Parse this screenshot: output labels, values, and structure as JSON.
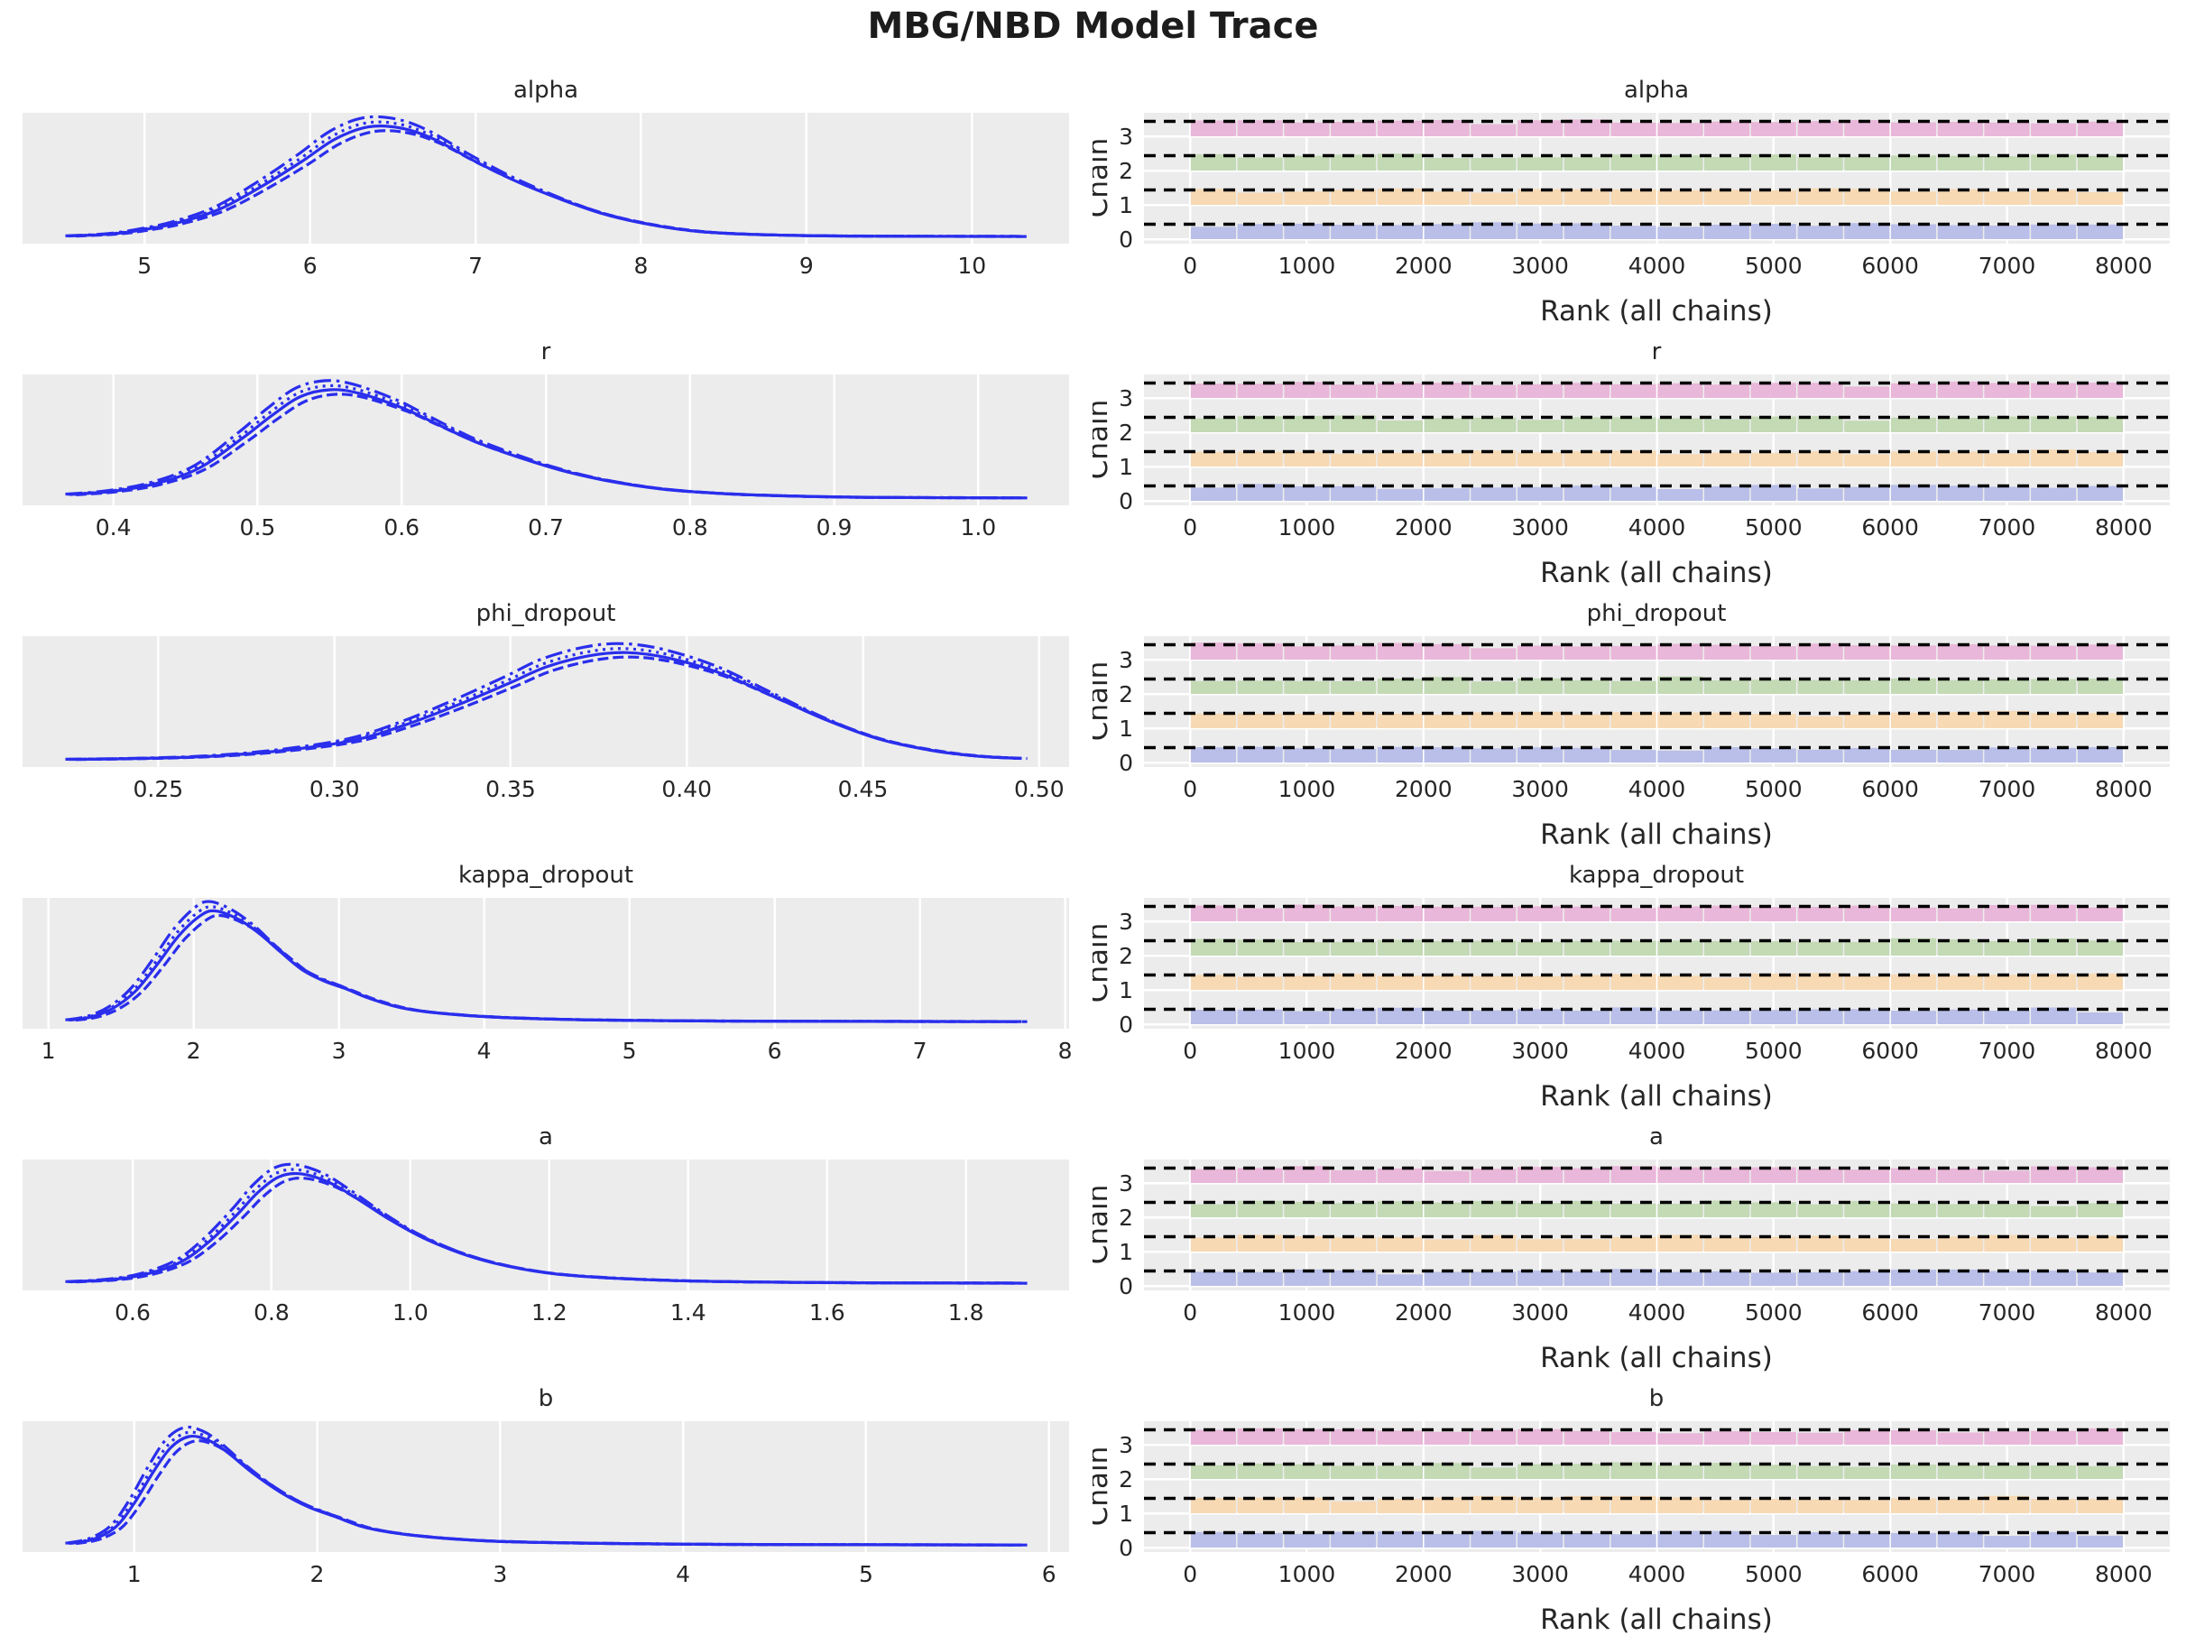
{
  "colors": {
    "figure_background": "#ffffff",
    "panel_background": "#ececec",
    "grid": "#ffffff",
    "kde_line": "#2a2eec",
    "text": "#262626",
    "expected_line": "#000000"
  },
  "chart_data": {
    "type": "line",
    "subtype": "mcmc-trace-with-rank-plots",
    "suptitle": "MBG/NBD Model Trace",
    "n_chains": 4,
    "kde_linestyles": [
      "solid",
      "dashed",
      "dotted",
      "dashdot"
    ],
    "rank_plot": {
      "xlabel": "Rank (all chains)",
      "ylabel": "Chain",
      "xlim": [
        0,
        8000
      ],
      "x_ticks": [
        0,
        1000,
        2000,
        3000,
        4000,
        5000,
        6000,
        7000,
        8000
      ],
      "x_tick_labels": [
        "0",
        "1000",
        "2000",
        "3000",
        "4000",
        "5000",
        "6000",
        "7000",
        "8000"
      ],
      "y_tick_labels": [
        "0",
        "1",
        "2",
        "3"
      ],
      "bins": 20,
      "expected_draws_per_bin": 400,
      "bars_near_uniform": true,
      "chain_colors": [
        "#b9bfe8",
        "#f7d9b4",
        "#c3dab5",
        "#e9b7d9"
      ],
      "expected_line_style": "black dashed"
    },
    "params": [
      {
        "name": "alpha",
        "x_range": [
          4.55,
          10.3
        ],
        "peak_x": 6.4,
        "x_ticks": [
          5,
          6,
          7,
          8,
          9,
          10
        ],
        "x_tick_labels": [
          "5",
          "6",
          "7",
          "8",
          "9",
          "10"
        ],
        "kde": [
          [
            4.55,
            0.012
          ],
          [
            4.8,
            0.03
          ],
          [
            5.0,
            0.07
          ],
          [
            5.2,
            0.13
          ],
          [
            5.45,
            0.25
          ],
          [
            5.7,
            0.45
          ],
          [
            5.95,
            0.68
          ],
          [
            6.15,
            0.88
          ],
          [
            6.35,
            0.99
          ],
          [
            6.55,
            0.98
          ],
          [
            6.75,
            0.88
          ],
          [
            7.0,
            0.68
          ],
          [
            7.25,
            0.5
          ],
          [
            7.5,
            0.35
          ],
          [
            7.75,
            0.22
          ],
          [
            8.0,
            0.13
          ],
          [
            8.3,
            0.06
          ],
          [
            8.6,
            0.03
          ],
          [
            9.0,
            0.015
          ],
          [
            9.5,
            0.01
          ],
          [
            10.3,
            0.008
          ]
        ]
      },
      {
        "name": "r",
        "x_range": [
          0.37,
          1.03
        ],
        "peak_x": 0.54,
        "x_ticks": [
          0.4,
          0.5,
          0.6,
          0.7,
          0.8,
          0.9,
          1.0
        ],
        "x_tick_labels": [
          "0.4",
          "0.5",
          "0.6",
          "0.7",
          "0.8",
          "0.9",
          "1.0"
        ],
        "kde": [
          [
            0.37,
            0.04
          ],
          [
            0.4,
            0.07
          ],
          [
            0.43,
            0.14
          ],
          [
            0.46,
            0.28
          ],
          [
            0.49,
            0.55
          ],
          [
            0.51,
            0.75
          ],
          [
            0.53,
            0.92
          ],
          [
            0.55,
            0.98
          ],
          [
            0.57,
            0.95
          ],
          [
            0.6,
            0.82
          ],
          [
            0.62,
            0.7
          ],
          [
            0.65,
            0.52
          ],
          [
            0.68,
            0.38
          ],
          [
            0.71,
            0.26
          ],
          [
            0.74,
            0.17
          ],
          [
            0.78,
            0.09
          ],
          [
            0.82,
            0.05
          ],
          [
            0.86,
            0.03
          ],
          [
            0.92,
            0.015
          ],
          [
            1.03,
            0.01
          ]
        ]
      },
      {
        "name": "phi_dropout",
        "x_range": [
          0.225,
          0.495
        ],
        "peak_x": 0.378,
        "x_ticks": [
          0.25,
          0.3,
          0.35,
          0.4,
          0.45,
          0.5
        ],
        "x_tick_labels": [
          "0.25",
          "0.30",
          "0.35",
          "0.40",
          "0.45",
          "0.50"
        ],
        "kde": [
          [
            0.225,
            0.012
          ],
          [
            0.245,
            0.02
          ],
          [
            0.265,
            0.04
          ],
          [
            0.285,
            0.09
          ],
          [
            0.305,
            0.18
          ],
          [
            0.32,
            0.32
          ],
          [
            0.335,
            0.5
          ],
          [
            0.35,
            0.7
          ],
          [
            0.36,
            0.84
          ],
          [
            0.372,
            0.94
          ],
          [
            0.383,
            0.97
          ],
          [
            0.395,
            0.92
          ],
          [
            0.41,
            0.78
          ],
          [
            0.425,
            0.57
          ],
          [
            0.44,
            0.36
          ],
          [
            0.455,
            0.19
          ],
          [
            0.47,
            0.09
          ],
          [
            0.483,
            0.04
          ],
          [
            0.495,
            0.02
          ]
        ]
      },
      {
        "name": "kappa_dropout",
        "x_range": [
          1.15,
          7.7
        ],
        "peak_x": 2.1,
        "x_ticks": [
          1,
          2,
          3,
          4,
          5,
          6,
          7,
          8
        ],
        "x_tick_labels": [
          "1",
          "2",
          "3",
          "4",
          "5",
          "6",
          "7",
          "8"
        ],
        "kde": [
          [
            1.15,
            0.02
          ],
          [
            1.3,
            0.05
          ],
          [
            1.45,
            0.13
          ],
          [
            1.6,
            0.28
          ],
          [
            1.75,
            0.52
          ],
          [
            1.9,
            0.78
          ],
          [
            2.05,
            0.96
          ],
          [
            2.15,
            1.0
          ],
          [
            2.3,
            0.93
          ],
          [
            2.45,
            0.8
          ],
          [
            2.6,
            0.63
          ],
          [
            2.75,
            0.47
          ],
          [
            2.9,
            0.37
          ],
          [
            3.05,
            0.3
          ],
          [
            3.2,
            0.22
          ],
          [
            3.4,
            0.14
          ],
          [
            3.6,
            0.095
          ],
          [
            3.9,
            0.06
          ],
          [
            4.2,
            0.04
          ],
          [
            4.6,
            0.025
          ],
          [
            5.0,
            0.018
          ],
          [
            5.6,
            0.012
          ],
          [
            6.3,
            0.01
          ],
          [
            7.0,
            0.008
          ],
          [
            7.7,
            0.007
          ]
        ]
      },
      {
        "name": "a",
        "x_range": [
          0.51,
          1.88
        ],
        "peak_x": 0.82,
        "x_ticks": [
          0.6,
          0.8,
          1.0,
          1.2,
          1.4,
          1.6,
          1.8
        ],
        "x_tick_labels": [
          "0.6",
          "0.8",
          "1.0",
          "1.2",
          "1.4",
          "1.6",
          "1.8"
        ],
        "kde": [
          [
            0.51,
            0.02
          ],
          [
            0.57,
            0.04
          ],
          [
            0.62,
            0.09
          ],
          [
            0.67,
            0.2
          ],
          [
            0.71,
            0.38
          ],
          [
            0.75,
            0.62
          ],
          [
            0.78,
            0.82
          ],
          [
            0.81,
            0.96
          ],
          [
            0.84,
            0.99
          ],
          [
            0.88,
            0.92
          ],
          [
            0.92,
            0.78
          ],
          [
            0.97,
            0.58
          ],
          [
            1.02,
            0.41
          ],
          [
            1.08,
            0.26
          ],
          [
            1.14,
            0.16
          ],
          [
            1.21,
            0.09
          ],
          [
            1.3,
            0.05
          ],
          [
            1.42,
            0.025
          ],
          [
            1.55,
            0.015
          ],
          [
            1.7,
            0.01
          ],
          [
            1.88,
            0.008
          ]
        ]
      },
      {
        "name": "b",
        "x_range": [
          0.65,
          5.85
        ],
        "peak_x": 1.3,
        "x_ticks": [
          1,
          2,
          3,
          4,
          5,
          6
        ],
        "x_tick_labels": [
          "1",
          "2",
          "3",
          "4",
          "5",
          "6"
        ],
        "kde": [
          [
            0.65,
            0.02
          ],
          [
            0.78,
            0.06
          ],
          [
            0.9,
            0.17
          ],
          [
            1.0,
            0.38
          ],
          [
            1.1,
            0.65
          ],
          [
            1.2,
            0.88
          ],
          [
            1.3,
            0.98
          ],
          [
            1.4,
            0.95
          ],
          [
            1.5,
            0.85
          ],
          [
            1.65,
            0.65
          ],
          [
            1.8,
            0.48
          ],
          [
            1.95,
            0.35
          ],
          [
            2.1,
            0.26
          ],
          [
            2.25,
            0.17
          ],
          [
            2.4,
            0.12
          ],
          [
            2.6,
            0.08
          ],
          [
            2.9,
            0.045
          ],
          [
            3.2,
            0.03
          ],
          [
            3.6,
            0.02
          ],
          [
            4.2,
            0.012
          ],
          [
            5.0,
            0.009
          ],
          [
            5.85,
            0.007
          ]
        ]
      }
    ]
  }
}
